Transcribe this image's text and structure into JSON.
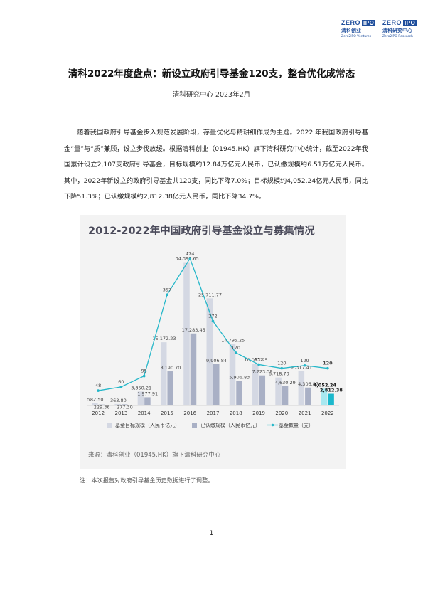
{
  "header": {
    "logo_left": {
      "brand": "ZERO",
      "brand_box": "IPO",
      "cn": "清科创业",
      "en": "Zero2IPO Ventures"
    },
    "logo_right": {
      "brand": "ZERO",
      "brand_box": "IPO",
      "cn": "清科研究中心",
      "en": "Zero2IPO Research"
    }
  },
  "document": {
    "title": "清科2022年度盘点：新设立政府引导基金120支，整合优化成常态",
    "subtitle": "清科研究中心  2023年2月",
    "paragraph": "随着我国政府引导基金步入规范发展阶段，存量优化与精耕细作成为主题。2022 年我国政府引导基金“量”与“质”兼顾，设立步伐放缓。根据清科创业（01945.HK）旗下清科研究中心统计，截至2022年我国累计设立2,107支政府引导基金，目标规模约12.84万亿元人民币，已认缴规模约6.51万亿元人民币。其中，2022年新设立的政府引导基金共120支，同比下降7.0%；目标规模约4,052.24亿元人民币，同比下降51.3%；已认缴规模约2,812.38亿元人民币，同比下降34.7%。",
    "note": "注：本次报告对政府引导基金历史数据进行了调整。",
    "page_number": "1"
  },
  "figure": {
    "source": "来源：清科创业（01945.HK）旗下清科研究中心",
    "colors": {
      "target": "#d4d8e3",
      "subscribed": "#a9b0c5",
      "line": "#25b7c9",
      "highlight_target": "#a8e8f0",
      "highlight_subscribed": "#1cb8cc",
      "title": "#4a4a5a"
    }
  },
  "chart_data": {
    "type": "bar",
    "title": "2012-2022年中国政府引导基金设立与募集情况",
    "categories": [
      "2012",
      "2013",
      "2014",
      "2015",
      "2016",
      "2017",
      "2018",
      "2019",
      "2020",
      "2021",
      "2022"
    ],
    "series": [
      {
        "name": "基金目标规模（人民币亿元）",
        "type": "bar",
        "values": [
          582.5,
          363.8,
          3350.21,
          15172.23,
          34399.65,
          25711.77,
          14795.25,
          10057.95,
          6718.73,
          8317.41,
          4052.24
        ],
        "labels": [
          "582.50",
          "363.80",
          "3,350.21",
          "15,172.23",
          "34,399.65",
          "25,711.77",
          "14,795.25",
          "10,057.95",
          "6,718.73",
          "8,317.41",
          "4,052.24"
        ]
      },
      {
        "name": "已认缴规模（人民币亿元）",
        "type": "bar",
        "values": [
          229.36,
          277.3,
          1977.91,
          8190.7,
          17283.45,
          9906.84,
          5906.83,
          7223.39,
          4630.29,
          4306.87,
          2812.38
        ],
        "labels": [
          "229.36",
          "277.30",
          "1,977.91",
          "8,190.70",
          "17,283.45",
          "9,906.84",
          "5,906.83",
          "7,223.39",
          "4,630.29",
          "4,306.87",
          "2,812.38"
        ]
      },
      {
        "name": "基金数量（支）",
        "type": "line",
        "values": [
          48,
          60,
          95,
          357,
          474,
          272,
          170,
          132,
          120,
          129,
          120
        ],
        "labels": [
          "48",
          "60",
          "95",
          "357",
          "474",
          "272",
          "170",
          "132",
          "120",
          "129",
          "120"
        ]
      }
    ],
    "legend": "bottom",
    "grid": false
  }
}
